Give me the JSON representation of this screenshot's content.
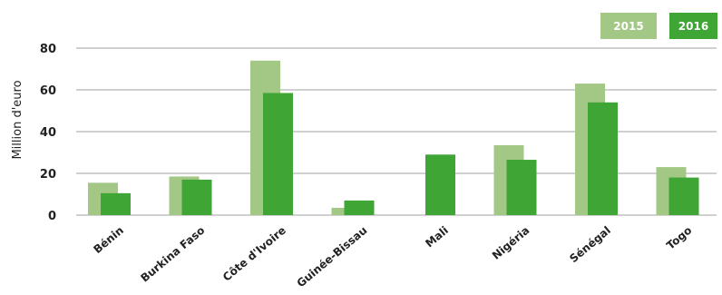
{
  "chart_data": {
    "type": "bar",
    "title": "",
    "xlabel": "",
    "ylabel": "Million d'euro",
    "ylim": [
      0,
      80
    ],
    "yticks": [
      0,
      20,
      40,
      60,
      80
    ],
    "grid": true,
    "legend_position": "top-right",
    "categories": [
      "Bénin",
      "Burkina Faso",
      "Côte d'Ivoire",
      "Guinée-Bissau",
      "Mali",
      "Nigéria",
      "Sénégal",
      "Togo"
    ],
    "series": [
      {
        "name": "2015",
        "color": "#a3c785",
        "values": [
          15.5,
          18.5,
          74,
          3.5,
          0,
          33.5,
          63,
          23
        ]
      },
      {
        "name": "2016",
        "color": "#3fa535",
        "values": [
          10.5,
          17,
          58.5,
          7,
          29,
          26.5,
          54,
          18
        ]
      }
    ]
  }
}
